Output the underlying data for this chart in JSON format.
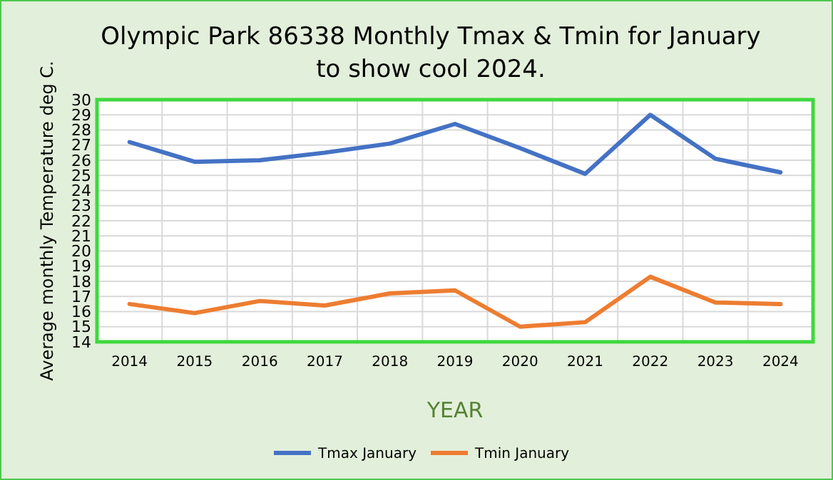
{
  "chart_data": {
    "type": "line",
    "title": "Olympic Park 86338 Monthly Tmax & Tmin for January to show cool 2024.",
    "xlabel": "YEAR",
    "ylabel": "Average monthly  Temperature deg C.",
    "categories": [
      "2014",
      "2015",
      "2016",
      "2017",
      "2018",
      "2019",
      "2020",
      "2021",
      "2022",
      "2023",
      "2024"
    ],
    "series": [
      {
        "name": "Tmax January",
        "color": "#4472c4",
        "values": [
          27.2,
          25.9,
          26.0,
          26.5,
          27.1,
          28.4,
          26.8,
          25.1,
          29.0,
          26.1,
          25.2
        ]
      },
      {
        "name": "Tmin January",
        "color": "#ed7d31",
        "values": [
          16.5,
          15.9,
          16.7,
          16.4,
          17.2,
          17.4,
          15.0,
          15.3,
          18.3,
          16.6,
          16.5
        ]
      }
    ],
    "ylim": [
      14,
      30
    ],
    "yticks": [
      14,
      15,
      16,
      17,
      18,
      19,
      20,
      21,
      22,
      23,
      24,
      25,
      26,
      27,
      28,
      29,
      30
    ],
    "grid": true,
    "legend": "bottom",
    "marker": "none",
    "line_style": "solid"
  }
}
